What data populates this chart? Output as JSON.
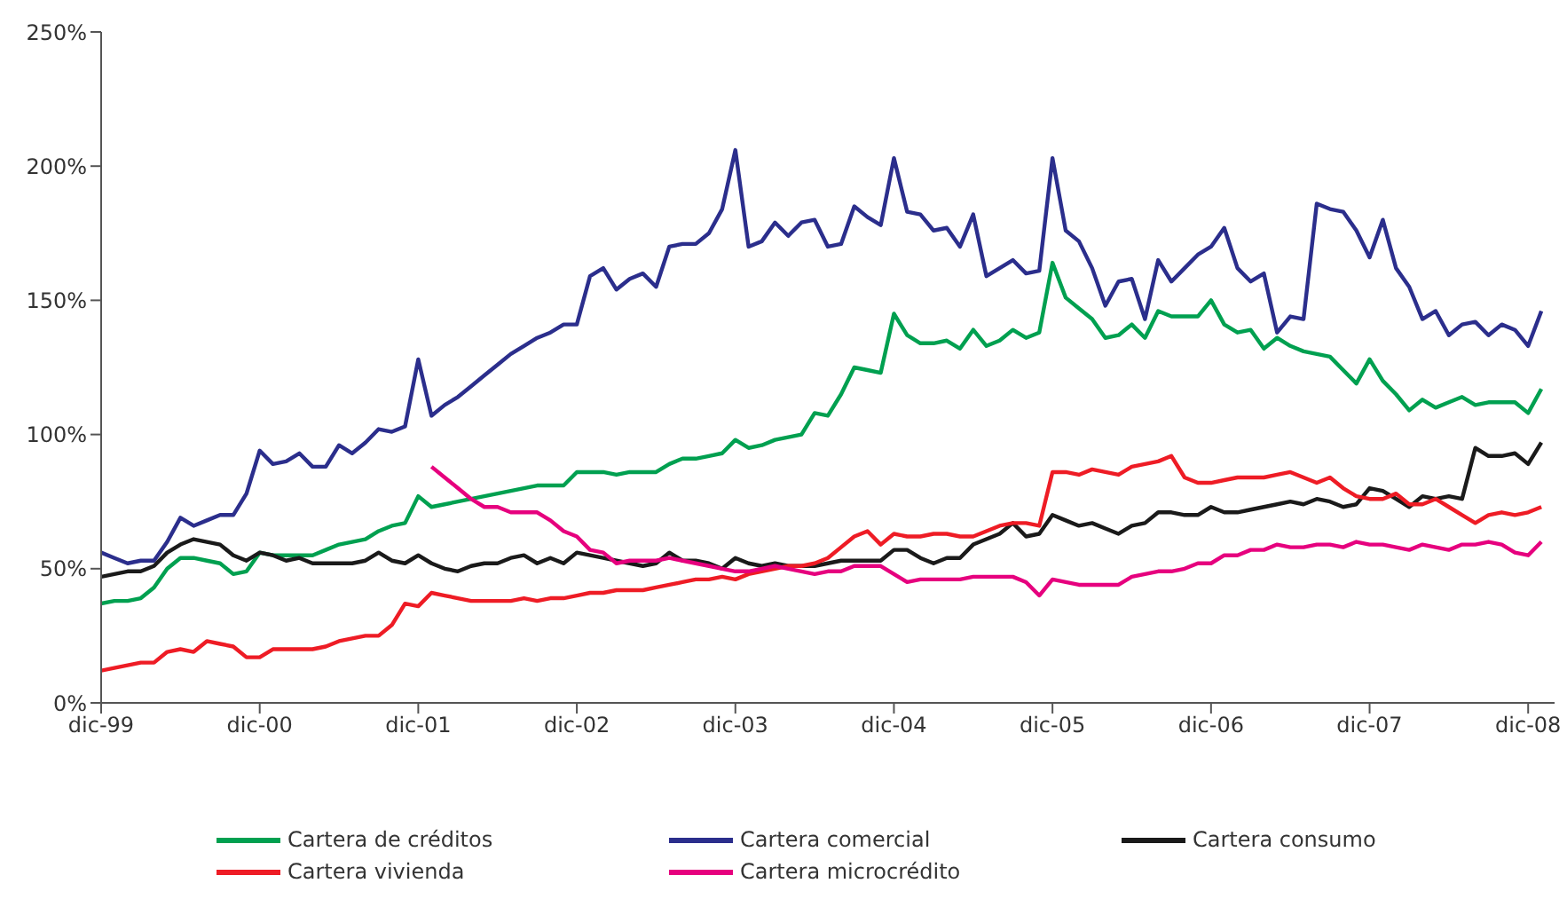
{
  "chart_data": {
    "type": "line",
    "x": [
      "1999-12",
      "2000-01",
      "2000-02",
      "2000-03",
      "2000-04",
      "2000-05",
      "2000-06",
      "2000-07",
      "2000-08",
      "2000-09",
      "2000-10",
      "2000-11",
      "2000-12",
      "2001-01",
      "2001-02",
      "2001-03",
      "2001-04",
      "2001-05",
      "2001-06",
      "2001-07",
      "2001-08",
      "2001-09",
      "2001-10",
      "2001-11",
      "2001-12",
      "2002-01",
      "2002-02",
      "2002-03",
      "2002-04",
      "2002-05",
      "2002-06",
      "2002-07",
      "2002-08",
      "2002-09",
      "2002-10",
      "2002-11",
      "2002-12",
      "2003-01",
      "2003-02",
      "2003-03",
      "2003-04",
      "2003-05",
      "2003-06",
      "2003-07",
      "2003-08",
      "2003-09",
      "2003-10",
      "2003-11",
      "2003-12",
      "2004-01",
      "2004-02",
      "2004-03",
      "2004-04",
      "2004-05",
      "2004-06",
      "2004-07",
      "2004-08",
      "2004-09",
      "2004-10",
      "2004-11",
      "2004-12",
      "2005-01",
      "2005-02",
      "2005-03",
      "2005-04",
      "2005-05",
      "2005-06",
      "2005-07",
      "2005-08",
      "2005-09",
      "2005-10",
      "2005-11",
      "2005-12",
      "2006-01",
      "2006-02",
      "2006-03",
      "2006-04",
      "2006-05",
      "2006-06",
      "2006-07",
      "2006-08",
      "2006-09",
      "2006-10",
      "2006-11",
      "2006-12",
      "2007-01",
      "2007-02",
      "2007-03",
      "2007-04",
      "2007-05",
      "2007-06",
      "2007-07",
      "2007-08",
      "2007-09",
      "2007-10",
      "2007-11",
      "2007-12",
      "2008-01",
      "2008-02",
      "2008-03",
      "2008-04",
      "2008-05",
      "2008-06",
      "2008-07",
      "2008-08",
      "2008-09",
      "2008-10",
      "2008-11",
      "2008-12",
      "2009-01"
    ],
    "xlim": [
      "1999-12",
      "2009-02"
    ],
    "xticks": [
      {
        "value": "1999-12",
        "label": "dic-99"
      },
      {
        "value": "2000-12",
        "label": "dic-00"
      },
      {
        "value": "2001-12",
        "label": "dic-01"
      },
      {
        "value": "2002-12",
        "label": "dic-02"
      },
      {
        "value": "2003-12",
        "label": "dic-03"
      },
      {
        "value": "2004-12",
        "label": "dic-04"
      },
      {
        "value": "2005-12",
        "label": "dic-05"
      },
      {
        "value": "2006-12",
        "label": "dic-06"
      },
      {
        "value": "2007-12",
        "label": "dic-07"
      },
      {
        "value": "2008-12",
        "label": "dic-08"
      }
    ],
    "ylim": [
      0,
      250
    ],
    "yticks": [
      {
        "value": 0,
        "label": "0%"
      },
      {
        "value": 50,
        "label": "50%"
      },
      {
        "value": 100,
        "label": "100%"
      },
      {
        "value": 150,
        "label": "150%"
      },
      {
        "value": 200,
        "label": "200%"
      },
      {
        "value": 250,
        "label": "250%"
      }
    ],
    "grid": false,
    "legend": "bottom",
    "marker": "none",
    "line_style": "solid",
    "series": [
      {
        "name": "Cartera de créditos",
        "color": "#00a050",
        "values": [
          37,
          38,
          38,
          39,
          43,
          50,
          54,
          54,
          53,
          52,
          48,
          49,
          56,
          55,
          55,
          55,
          55,
          57,
          59,
          60,
          61,
          64,
          66,
          67,
          77,
          73,
          74,
          75,
          76,
          77,
          78,
          79,
          80,
          81,
          81,
          81,
          86,
          86,
          86,
          85,
          86,
          86,
          86,
          89,
          91,
          91,
          92,
          93,
          98,
          95,
          96,
          98,
          99,
          100,
          108,
          107,
          115,
          125,
          124,
          123,
          145,
          137,
          134,
          134,
          135,
          132,
          139,
          133,
          135,
          139,
          136,
          138,
          164,
          151,
          147,
          143,
          136,
          137,
          141,
          136,
          146,
          144,
          144,
          144,
          150,
          141,
          138,
          139,
          132,
          136,
          133,
          131,
          130,
          129,
          124,
          119,
          128,
          120,
          115,
          109,
          113,
          110,
          112,
          114,
          111,
          112,
          112,
          112,
          108,
          117
        ]
      },
      {
        "name": "Cartera comercial",
        "color": "#2b2e8c",
        "values": [
          56,
          54,
          52,
          53,
          53,
          60,
          69,
          66,
          68,
          70,
          70,
          78,
          94,
          89,
          90,
          93,
          88,
          88,
          96,
          93,
          97,
          102,
          101,
          103,
          128,
          107,
          111,
          114,
          118,
          122,
          126,
          130,
          133,
          136,
          138,
          141,
          141,
          159,
          162,
          154,
          158,
          160,
          155,
          170,
          171,
          171,
          175,
          184,
          206,
          170,
          172,
          179,
          174,
          179,
          180,
          170,
          171,
          185,
          181,
          178,
          203,
          183,
          182,
          176,
          177,
          170,
          182,
          159,
          162,
          165,
          160,
          161,
          203,
          176,
          172,
          162,
          148,
          157,
          158,
          143,
          165,
          157,
          162,
          167,
          170,
          177,
          162,
          157,
          160,
          138,
          144,
          143,
          186,
          184,
          183,
          176,
          166,
          180,
          162,
          155,
          143,
          146,
          137,
          141,
          142,
          137,
          141,
          139,
          133,
          146
        ]
      },
      {
        "name": "Cartera consumo",
        "color": "#1a1a1a",
        "values": [
          47,
          48,
          49,
          49,
          51,
          56,
          59,
          61,
          60,
          59,
          55,
          53,
          56,
          55,
          53,
          54,
          52,
          52,
          52,
          52,
          53,
          56,
          53,
          52,
          55,
          52,
          50,
          49,
          51,
          52,
          52,
          54,
          55,
          52,
          54,
          52,
          56,
          55,
          54,
          53,
          52,
          51,
          52,
          56,
          53,
          53,
          52,
          50,
          54,
          52,
          51,
          52,
          51,
          51,
          51,
          52,
          53,
          53,
          53,
          53,
          57,
          57,
          54,
          52,
          54,
          54,
          59,
          61,
          63,
          67,
          62,
          63,
          70,
          68,
          66,
          67,
          65,
          63,
          66,
          67,
          71,
          71,
          70,
          70,
          73,
          71,
          71,
          72,
          73,
          74,
          75,
          74,
          76,
          75,
          73,
          74,
          80,
          79,
          76,
          73,
          77,
          76,
          77,
          76,
          95,
          92,
          92,
          93,
          89,
          97
        ]
      },
      {
        "name": "Cartera vivienda",
        "color": "#ee1c25",
        "values": [
          12,
          13,
          14,
          15,
          15,
          19,
          20,
          19,
          23,
          22,
          21,
          17,
          17,
          20,
          20,
          20,
          20,
          21,
          23,
          24,
          25,
          25,
          29,
          37,
          36,
          41,
          40,
          39,
          38,
          38,
          38,
          38,
          39,
          38,
          39,
          39,
          40,
          41,
          41,
          42,
          42,
          42,
          43,
          44,
          45,
          46,
          46,
          47,
          46,
          48,
          49,
          50,
          51,
          51,
          52,
          54,
          58,
          62,
          64,
          59,
          63,
          62,
          62,
          63,
          63,
          62,
          62,
          64,
          66,
          67,
          67,
          66,
          86,
          86,
          85,
          87,
          86,
          85,
          88,
          89,
          90,
          92,
          84,
          82,
          82,
          83,
          84,
          84,
          84,
          85,
          86,
          84,
          82,
          84,
          80,
          77,
          76,
          76,
          78,
          74,
          74,
          76,
          73,
          70,
          67,
          70,
          71,
          70,
          71,
          73
        ]
      },
      {
        "name": "Cartera microcrédito",
        "color": "#e6007e",
        "values": [
          null,
          null,
          null,
          null,
          null,
          null,
          null,
          null,
          null,
          null,
          null,
          null,
          null,
          null,
          null,
          null,
          null,
          null,
          null,
          null,
          null,
          null,
          null,
          null,
          null,
          88,
          84,
          80,
          76,
          73,
          73,
          71,
          71,
          71,
          68,
          64,
          62,
          57,
          56,
          52,
          53,
          53,
          53,
          54,
          53,
          52,
          51,
          50,
          49,
          49,
          50,
          51,
          50,
          49,
          48,
          49,
          49,
          51,
          51,
          51,
          48,
          45,
          46,
          46,
          46,
          46,
          47,
          47,
          47,
          47,
          45,
          40,
          46,
          45,
          44,
          44,
          44,
          44,
          47,
          48,
          49,
          49,
          50,
          52,
          52,
          55,
          55,
          57,
          57,
          59,
          58,
          58,
          59,
          59,
          58,
          60,
          59,
          59,
          58,
          57,
          59,
          58,
          57,
          59,
          59,
          60,
          59,
          56,
          55,
          60
        ]
      }
    ]
  }
}
